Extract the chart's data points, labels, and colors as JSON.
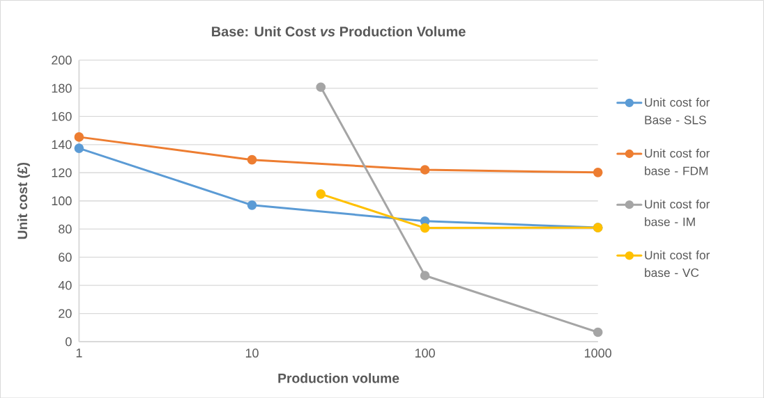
{
  "chart_data": {
    "type": "line",
    "title": "Base: Unit Cost *vs* Production Volume",
    "xlabel": "Production volume",
    "ylabel": "Unit cost (£)",
    "log": "x",
    "xlim": [
      1,
      1000
    ],
    "xticks": [
      1,
      10,
      100,
      1000
    ],
    "ylim": [
      0,
      200
    ],
    "yticks": [
      0,
      20,
      40,
      60,
      80,
      100,
      120,
      140,
      160,
      180,
      200
    ],
    "grid": "y",
    "legend": "right",
    "marker": "circle",
    "line_style": "solid",
    "x": [
      1,
      10,
      100,
      1000
    ],
    "series": [
      {
        "name": "Unit cost for Base - SLS",
        "color": "#5b9bd5",
        "values": [
          137.4,
          97,
          85.6,
          81.1
        ]
      },
      {
        "name": "Unit cost for base - FDM",
        "color": "#ed7d31",
        "values": [
          145.4,
          129.2,
          122.1,
          120.2
        ]
      },
      {
        "name": "Unit cost for base - IM",
        "color": "#a5a5a5",
        "x": [
          25,
          100,
          1000
        ],
        "values": [
          180.8,
          47,
          6.7
        ]
      },
      {
        "name": "Unit cost for base - VC",
        "color": "#ffc000",
        "x": [
          25,
          100,
          1000
        ],
        "values": [
          104.9,
          80.8,
          81
        ]
      }
    ]
  }
}
